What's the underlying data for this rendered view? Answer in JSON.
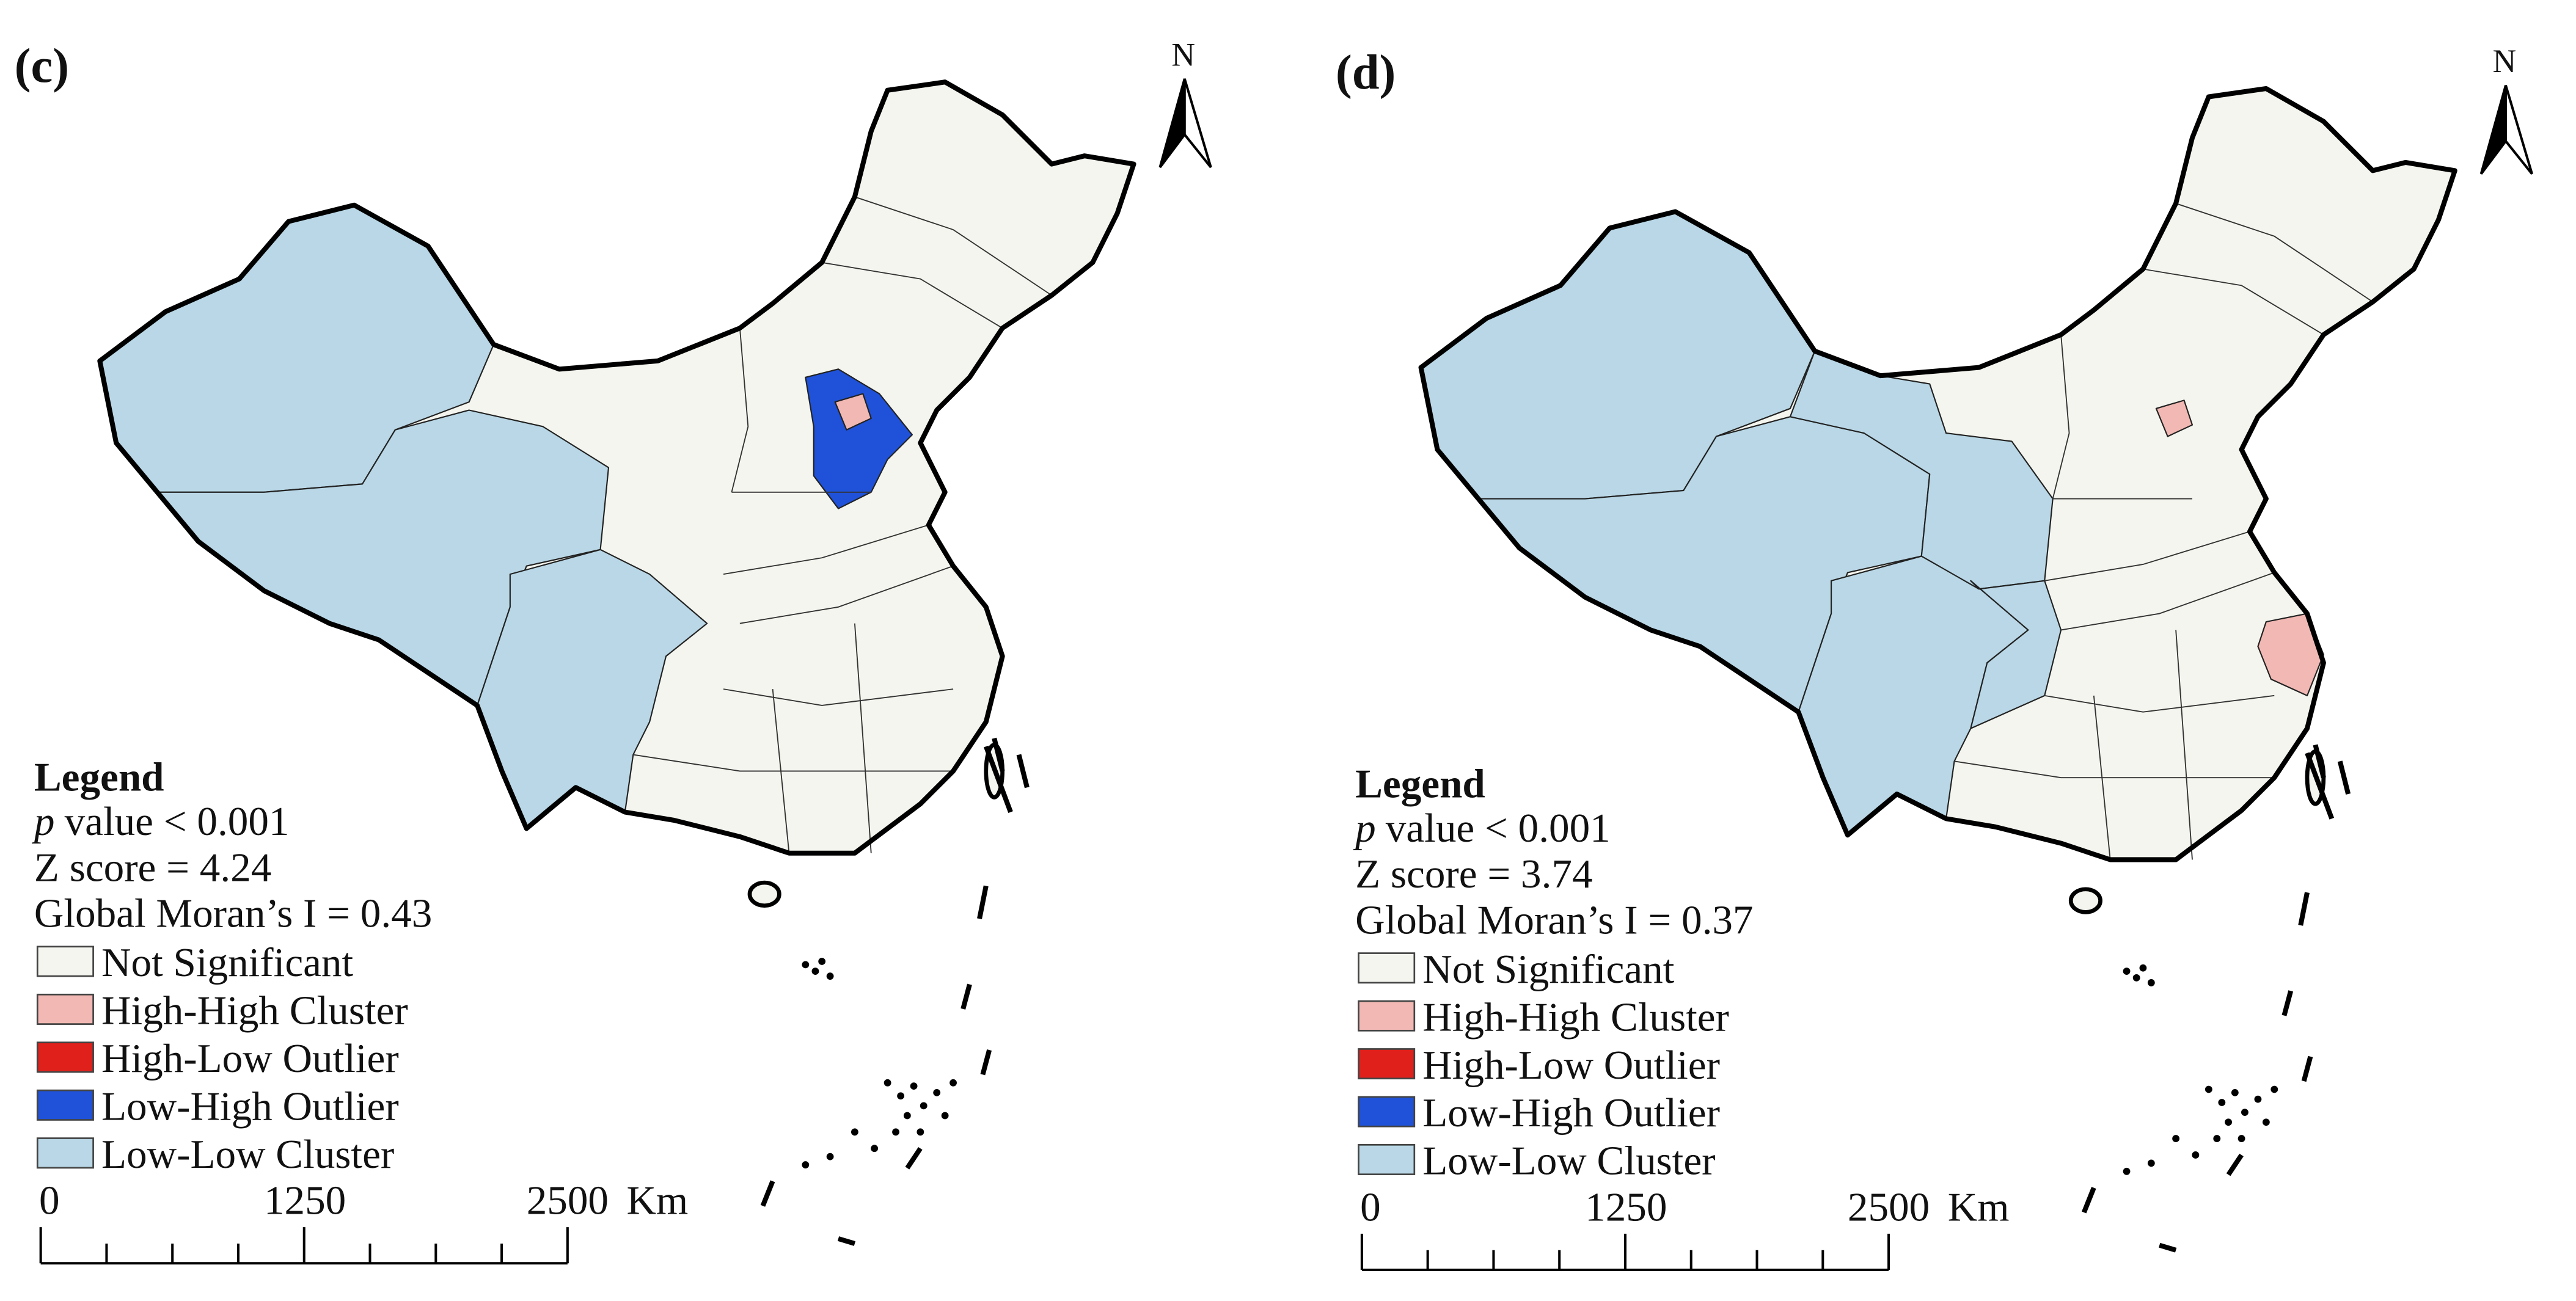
{
  "panels": [
    {
      "label": "(c)",
      "north": "N",
      "legend": {
        "title": "Legend",
        "p_symbol": "p",
        "p_text": "value < 0.001",
        "z_score": "Z score = 4.24",
        "morans_i": "Global Moran’s I = 0.43",
        "items": [
          {
            "label": "Not Significant",
            "color": "#f5f5ef"
          },
          {
            "label": "High-High Cluster",
            "color": "#f2b8b3"
          },
          {
            "label": "High-Low Outlier",
            "color": "#e0201b"
          },
          {
            "label": "Low-High Outlier",
            "color": "#1f52d9"
          },
          {
            "label": "Low-Low Cluster",
            "color": "#b9d7e6"
          }
        ]
      },
      "scale_bar": {
        "labels": [
          "0",
          "1250",
          "2500"
        ],
        "unit": "Km"
      }
    },
    {
      "label": "(d)",
      "north": "N",
      "legend": {
        "title": "Legend",
        "p_symbol": "p",
        "p_text": "value < 0.001",
        "z_score": "Z score = 3.74",
        "morans_i": "Global Moran’s I = 0.37",
        "items": [
          {
            "label": "Not Significant",
            "color": "#f5f5ef"
          },
          {
            "label": "High-High Cluster",
            "color": "#f2b8b3"
          },
          {
            "label": "High-Low Outlier",
            "color": "#e0201b"
          },
          {
            "label": "Low-High Outlier",
            "color": "#1f52d9"
          },
          {
            "label": "Low-Low Cluster",
            "color": "#b9d7e6"
          }
        ]
      },
      "scale_bar": {
        "labels": [
          "0",
          "1250",
          "2500"
        ],
        "unit": "Km"
      }
    }
  ]
}
